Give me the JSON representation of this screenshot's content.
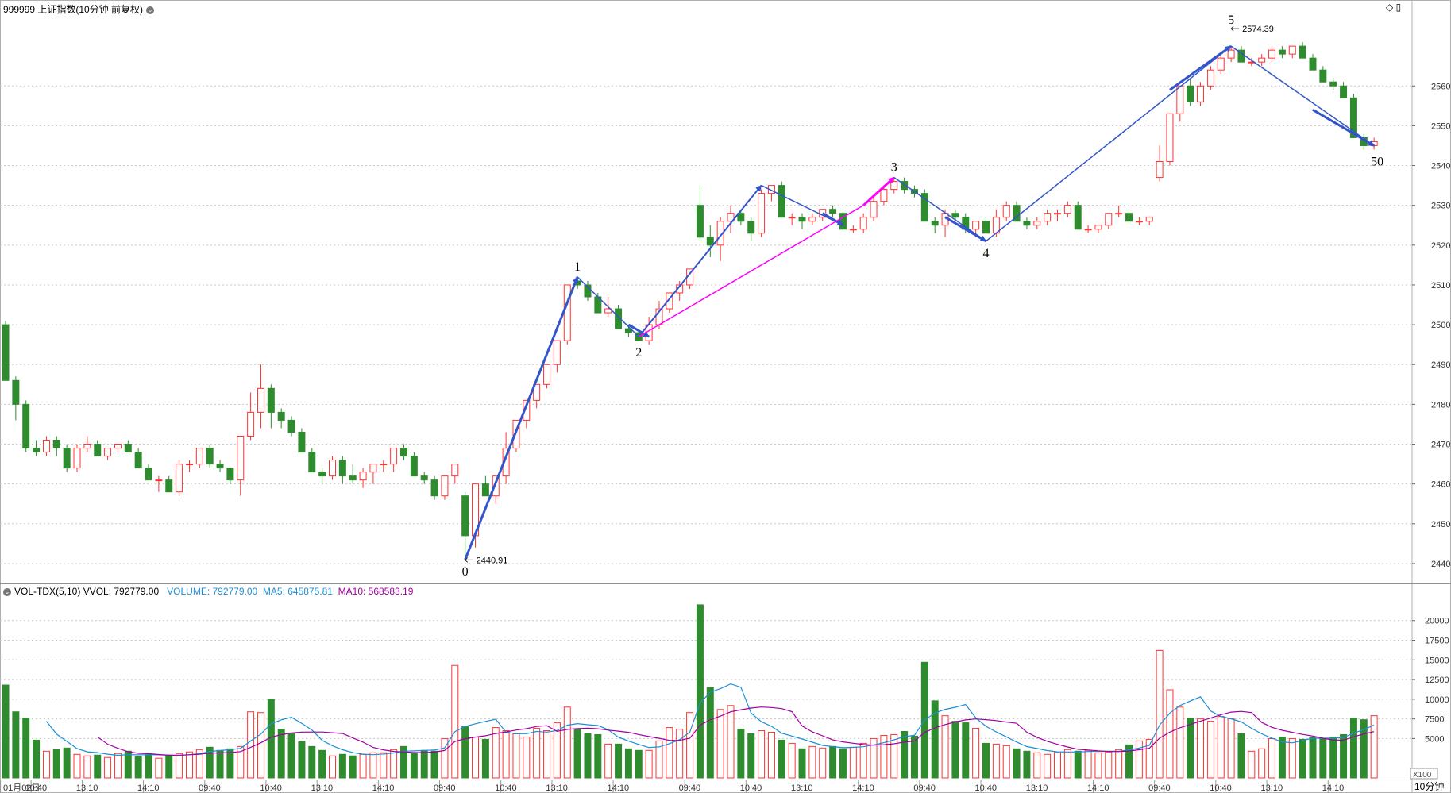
{
  "header": {
    "title": "999999 上证指数(10分钟 前复权)",
    "vol_indicator": "VOL-TDX(5,10)",
    "vvol": "VVOL: 792779.00",
    "volume": "VOLUME: 792779.00",
    "ma5": "MA5: 645875.81",
    "ma10": "MA10: 568583.19"
  },
  "colors": {
    "up": "#ff3333",
    "down": "#2e8b2e",
    "wave": "#3355cc",
    "magenta": "#ff00ff",
    "ma5": "#1a8fd8",
    "ma10": "#a000a0",
    "grid": "#c8c8c8"
  },
  "chart_data": {
    "type": "candlestick",
    "price_axis": {
      "ticks": [
        2440,
        2450,
        2460,
        2470,
        2480,
        2490,
        2500,
        2510,
        2520,
        2530,
        2540,
        2550,
        2560
      ]
    },
    "volume_axis": {
      "ticks": [
        5000,
        7500,
        10000,
        12500,
        15000,
        17500,
        20000
      ],
      "unit_label": "X100"
    },
    "period_label": "10分钟",
    "x_labels": [
      {
        "i": 0,
        "t": "01月02日"
      },
      {
        "i": 3,
        "t": "10:40"
      },
      {
        "i": 8,
        "t": "13:10"
      },
      {
        "i": 14,
        "t": "14:10"
      },
      {
        "i": 20,
        "t": "09:40"
      },
      {
        "i": 26,
        "t": "10:40"
      },
      {
        "i": 31,
        "t": "13:10"
      },
      {
        "i": 37,
        "t": "14:10"
      },
      {
        "i": 43,
        "t": "09:40"
      },
      {
        "i": 49,
        "t": "10:40"
      },
      {
        "i": 54,
        "t": "13:10"
      },
      {
        "i": 60,
        "t": "14:10"
      },
      {
        "i": 67,
        "t": "09:40"
      },
      {
        "i": 73,
        "t": "10:40"
      },
      {
        "i": 78,
        "t": "13:10"
      },
      {
        "i": 84,
        "t": "14:10"
      },
      {
        "i": 90,
        "t": "09:40"
      },
      {
        "i": 96,
        "t": "10:40"
      },
      {
        "i": 101,
        "t": "13:10"
      },
      {
        "i": 107,
        "t": "14:10"
      },
      {
        "i": 113,
        "t": "09:40"
      },
      {
        "i": 119,
        "t": "10:40"
      },
      {
        "i": 124,
        "t": "13:10"
      },
      {
        "i": 130,
        "t": "14:10"
      }
    ],
    "candles": [
      [
        2500,
        2501,
        2486,
        2486,
        11800
      ],
      [
        2486,
        2487,
        2476,
        2480,
        8400
      ],
      [
        2480,
        2481,
        2468,
        2469,
        7600
      ],
      [
        2469,
        2471,
        2467,
        2468,
        4800
      ],
      [
        2468,
        2472,
        2467,
        2471,
        3400
      ],
      [
        2471,
        2472,
        2467,
        2469,
        3600
      ],
      [
        2469,
        2470,
        2463,
        2464,
        3800
      ],
      [
        2464,
        2470,
        2463,
        2469,
        3000
      ],
      [
        2469,
        2472,
        2468,
        2470,
        2800
      ],
      [
        2470,
        2471,
        2467,
        2467,
        2900
      ],
      [
        2467,
        2469,
        2466,
        2469,
        2600
      ],
      [
        2469,
        2470,
        2468,
        2470,
        3100
      ],
      [
        2470,
        2471,
        2468,
        2468,
        3400
      ],
      [
        2468,
        2469,
        2464,
        2464,
        2700
      ],
      [
        2464,
        2465,
        2461,
        2461,
        3000
      ],
      [
        2461,
        2462,
        2458,
        2461,
        2500
      ],
      [
        2461,
        2462,
        2458,
        2458,
        2900
      ],
      [
        2458,
        2466,
        2457,
        2465,
        3100
      ],
      [
        2465,
        2466,
        2463,
        2465,
        3300
      ],
      [
        2465,
        2469,
        2464,
        2469,
        3600
      ],
      [
        2469,
        2470,
        2464,
        2465,
        3900
      ],
      [
        2465,
        2466,
        2463,
        2464,
        3500
      ],
      [
        2464,
        2464,
        2460,
        2461,
        3700
      ],
      [
        2461,
        2472,
        2457,
        2472,
        4000
      ],
      [
        2472,
        2483,
        2471,
        2478,
        8400
      ],
      [
        2478,
        2490,
        2474,
        2484,
        8300
      ],
      [
        2484,
        2485,
        2474,
        2478,
        10000
      ],
      [
        2478,
        2479,
        2474,
        2476,
        6200
      ],
      [
        2476,
        2477,
        2472,
        2473,
        5600
      ],
      [
        2473,
        2474,
        2468,
        2468,
        4600
      ],
      [
        2468,
        2469,
        2463,
        2463,
        4000
      ],
      [
        2463,
        2464,
        2460,
        2462,
        3500
      ],
      [
        2462,
        2467,
        2461,
        2466,
        2800
      ],
      [
        2466,
        2467,
        2460,
        2462,
        3000
      ],
      [
        2462,
        2465,
        2460,
        2461,
        2800
      ],
      [
        2461,
        2464,
        2459,
        2463,
        3000
      ],
      [
        2463,
        2465,
        2460,
        2465,
        3200
      ],
      [
        2465,
        2466,
        2463,
        2465,
        3200
      ],
      [
        2465,
        2469,
        2463,
        2469,
        3600
      ],
      [
        2469,
        2470,
        2466,
        2467,
        4000
      ],
      [
        2467,
        2468,
        2462,
        2462,
        3200
      ],
      [
        2462,
        2463,
        2460,
        2461,
        3500
      ],
      [
        2461,
        2462,
        2456,
        2457,
        3400
      ],
      [
        2457,
        2462,
        2456,
        2462,
        5000
      ],
      [
        2462,
        2465,
        2460,
        2465,
        14300
      ],
      [
        2457,
        2458,
        2442,
        2447,
        6500
      ],
      [
        2447,
        2460,
        2444,
        2460,
        5200
      ],
      [
        2460,
        2462,
        2457,
        2457,
        4900
      ],
      [
        2457,
        2462,
        2455,
        2462,
        6400
      ],
      [
        2462,
        2473,
        2460,
        2469,
        6000
      ],
      [
        2469,
        2476,
        2468,
        2476,
        5600
      ],
      [
        2476,
        2481,
        2474,
        2481,
        5200
      ],
      [
        2481,
        2485,
        2479,
        2485,
        6300
      ],
      [
        2485,
        2490,
        2484,
        2490,
        6000
      ],
      [
        2490,
        2496,
        2488,
        2496,
        7000
      ],
      [
        2496,
        2510,
        2495,
        2510,
        9000
      ],
      [
        2511,
        2512,
        2509,
        2510,
        6200
      ],
      [
        2510,
        2511,
        2506,
        2507,
        5600
      ],
      [
        2507,
        2508,
        2503,
        2503,
        5500
      ],
      [
        2503,
        2507,
        2502,
        2504,
        4300
      ],
      [
        2504,
        2505,
        2499,
        2499,
        4300
      ],
      [
        2499,
        2500,
        2497,
        2498,
        3700
      ],
      [
        2498,
        2499,
        2496,
        2496,
        3500
      ],
      [
        2496,
        2502,
        2495,
        2500,
        3500
      ],
      [
        2500,
        2506,
        2499,
        2504,
        4700
      ],
      [
        2504,
        2508,
        2503,
        2508,
        6400
      ],
      [
        2508,
        2511,
        2506,
        2510,
        6200
      ],
      [
        2510,
        2514,
        2509,
        2514,
        8300
      ],
      [
        2530,
        2535,
        2521,
        2522,
        22000
      ],
      [
        2522,
        2525,
        2517,
        2520,
        11500
      ],
      [
        2520,
        2527,
        2516,
        2526,
        8700
      ],
      [
        2526,
        2530,
        2523,
        2528,
        9200
      ],
      [
        2528,
        2529,
        2525,
        2526,
        6200
      ],
      [
        2526,
        2527,
        2521,
        2523,
        5600
      ],
      [
        2523,
        2534,
        2522,
        2533,
        6000
      ],
      [
        2533,
        2535,
        2531,
        2535,
        5800
      ],
      [
        2535,
        2536,
        2527,
        2527,
        4800
      ],
      [
        2527,
        2528,
        2525,
        2527,
        4400
      ],
      [
        2527,
        2528,
        2524,
        2526,
        3700
      ],
      [
        2526,
        2528,
        2525,
        2527,
        4000
      ],
      [
        2527,
        2529,
        2526,
        2529,
        3800
      ],
      [
        2529,
        2530,
        2527,
        2528,
        4000
      ],
      [
        2528,
        2529,
        2524,
        2524,
        3700
      ],
      [
        2524,
        2525,
        2523,
        2524,
        3900
      ],
      [
        2524,
        2528,
        2523,
        2527,
        4400
      ],
      [
        2527,
        2532,
        2526,
        2531,
        5000
      ],
      [
        2531,
        2535,
        2530,
        2534,
        5400
      ],
      [
        2534,
        2537,
        2533,
        2536,
        5500
      ],
      [
        2536,
        2537,
        2533,
        2534,
        5900
      ],
      [
        2534,
        2535,
        2532,
        2533,
        5300
      ],
      [
        2533,
        2534,
        2526,
        2526,
        14700
      ],
      [
        2526,
        2527,
        2523,
        2525,
        9800
      ],
      [
        2525,
        2529,
        2522,
        2528,
        7900
      ],
      [
        2528,
        2529,
        2526,
        2527,
        7200
      ],
      [
        2527,
        2528,
        2523,
        2524,
        7000
      ],
      [
        2524,
        2526,
        2522,
        2526,
        6300
      ],
      [
        2526,
        2527,
        2523,
        2523,
        4400
      ],
      [
        2523,
        2529,
        2522,
        2527,
        4300
      ],
      [
        2527,
        2531,
        2526,
        2530,
        4100
      ],
      [
        2530,
        2531,
        2526,
        2526,
        3700
      ],
      [
        2526,
        2527,
        2524,
        2525,
        3400
      ],
      [
        2525,
        2527,
        2524,
        2526,
        3200
      ],
      [
        2526,
        2529,
        2525,
        2528,
        3000
      ],
      [
        2528,
        2529,
        2526,
        2528,
        3300
      ],
      [
        2528,
        2531,
        2527,
        2530,
        3600
      ],
      [
        2530,
        2531,
        2524,
        2524,
        3400
      ],
      [
        2524,
        2525,
        2523,
        2524,
        3500
      ],
      [
        2524,
        2525,
        2523,
        2525,
        3200
      ],
      [
        2525,
        2528,
        2524,
        2528,
        3300
      ],
      [
        2528,
        2530,
        2527,
        2528,
        3600
      ],
      [
        2528,
        2529,
        2525,
        2526,
        4200
      ],
      [
        2526,
        2527,
        2525,
        2526,
        4700
      ],
      [
        2526,
        2527,
        2525,
        2527,
        4900
      ],
      [
        2537,
        2545,
        2536,
        2541,
        16200
      ],
      [
        2541,
        2553,
        2540,
        2553,
        11200
      ],
      [
        2553,
        2560,
        2551,
        2560,
        9000
      ],
      [
        2560,
        2562,
        2555,
        2556,
        7600
      ],
      [
        2556,
        2561,
        2555,
        2560,
        7500
      ],
      [
        2560,
        2565,
        2559,
        2564,
        7200
      ],
      [
        2564,
        2568,
        2563,
        2567,
        7800
      ],
      [
        2567,
        2570,
        2566,
        2569,
        7500
      ],
      [
        2569,
        2570,
        2566,
        2566,
        5600
      ],
      [
        2566,
        2567,
        2565,
        2566,
        3400
      ],
      [
        2566,
        2568,
        2565,
        2567,
        3700
      ],
      [
        2567,
        2570,
        2566,
        2569,
        5000
      ],
      [
        2569,
        2570,
        2567,
        2568,
        5200
      ],
      [
        2568,
        2570,
        2567,
        2570,
        5000
      ],
      [
        2570,
        2571,
        2567,
        2567,
        4900
      ],
      [
        2567,
        2568,
        2564,
        2564,
        5100
      ],
      [
        2564,
        2565,
        2561,
        2561,
        5000
      ],
      [
        2561,
        2562,
        2559,
        2560,
        5200
      ],
      [
        2560,
        2561,
        2557,
        2557,
        5500
      ],
      [
        2557,
        2558,
        2547,
        2547,
        7600
      ],
      [
        2547,
        2548,
        2544,
        2545,
        7400
      ],
      [
        2545,
        2547,
        2544,
        2546,
        7900
      ]
    ],
    "price_labels": [
      {
        "i": 45,
        "price": 2440.91,
        "text": "2440.91"
      },
      {
        "i": 120,
        "price": 2574.39,
        "text": "2574.39"
      }
    ],
    "wave_labels": [
      {
        "i": 45,
        "price": 2441,
        "text": "0",
        "pos": "below"
      },
      {
        "i": 56,
        "price": 2512,
        "text": "1",
        "pos": "above"
      },
      {
        "i": 62,
        "price": 2496,
        "text": "2",
        "pos": "below"
      },
      {
        "i": 87,
        "price": 2537,
        "text": "3",
        "pos": "above"
      },
      {
        "i": 96,
        "price": 2521,
        "text": "4",
        "pos": "below"
      },
      {
        "i": 120,
        "price": 2574,
        "text": "5",
        "pos": "above"
      },
      {
        "i": 134,
        "price": 2544,
        "text": "50",
        "pos": "below"
      }
    ],
    "wave_lines": [
      {
        "from": [
          45,
          2441
        ],
        "to": [
          56,
          2512
        ],
        "w": 3,
        "color": "wave",
        "arrow": true
      },
      {
        "from": [
          56,
          2512
        ],
        "to": [
          62,
          2497
        ],
        "w": 1.5,
        "color": "wave",
        "arrow": false
      },
      {
        "from": [
          61,
          2500
        ],
        "to": [
          63,
          2497
        ],
        "w": 3,
        "color": "wave",
        "arrow": true
      },
      {
        "from": [
          62,
          2497
        ],
        "to": [
          74,
          2535
        ],
        "w": 2,
        "color": "wave",
        "arrow": true
      },
      {
        "from": [
          74,
          2535
        ],
        "to": [
          82,
          2525
        ],
        "w": 1.5,
        "color": "wave",
        "arrow": false
      },
      {
        "from": [
          80,
          2528
        ],
        "to": [
          82,
          2525
        ],
        "w": 3,
        "color": "wave",
        "arrow": true
      },
      {
        "from": [
          62,
          2497
        ],
        "to": [
          84,
          2530
        ],
        "w": 1.5,
        "color": "magenta",
        "arrow": false
      },
      {
        "from": [
          84,
          2530
        ],
        "to": [
          87,
          2537
        ],
        "w": 3,
        "color": "magenta",
        "arrow": true
      },
      {
        "from": [
          87,
          2537
        ],
        "to": [
          96,
          2521
        ],
        "w": 1.5,
        "color": "wave",
        "arrow": false
      },
      {
        "from": [
          92,
          2527
        ],
        "to": [
          96,
          2521
        ],
        "w": 3,
        "color": "wave",
        "arrow": true
      },
      {
        "from": [
          96,
          2521
        ],
        "to": [
          120,
          2570
        ],
        "w": 1.5,
        "color": "wave",
        "arrow": false
      },
      {
        "from": [
          114,
          2559
        ],
        "to": [
          120,
          2570
        ],
        "w": 3,
        "color": "wave",
        "arrow": true
      },
      {
        "from": [
          120,
          2570
        ],
        "to": [
          134,
          2545
        ],
        "w": 1.5,
        "color": "wave",
        "arrow": false
      },
      {
        "from": [
          128,
          2554
        ],
        "to": [
          134,
          2545
        ],
        "w": 3,
        "color": "wave",
        "arrow": true
      }
    ]
  }
}
